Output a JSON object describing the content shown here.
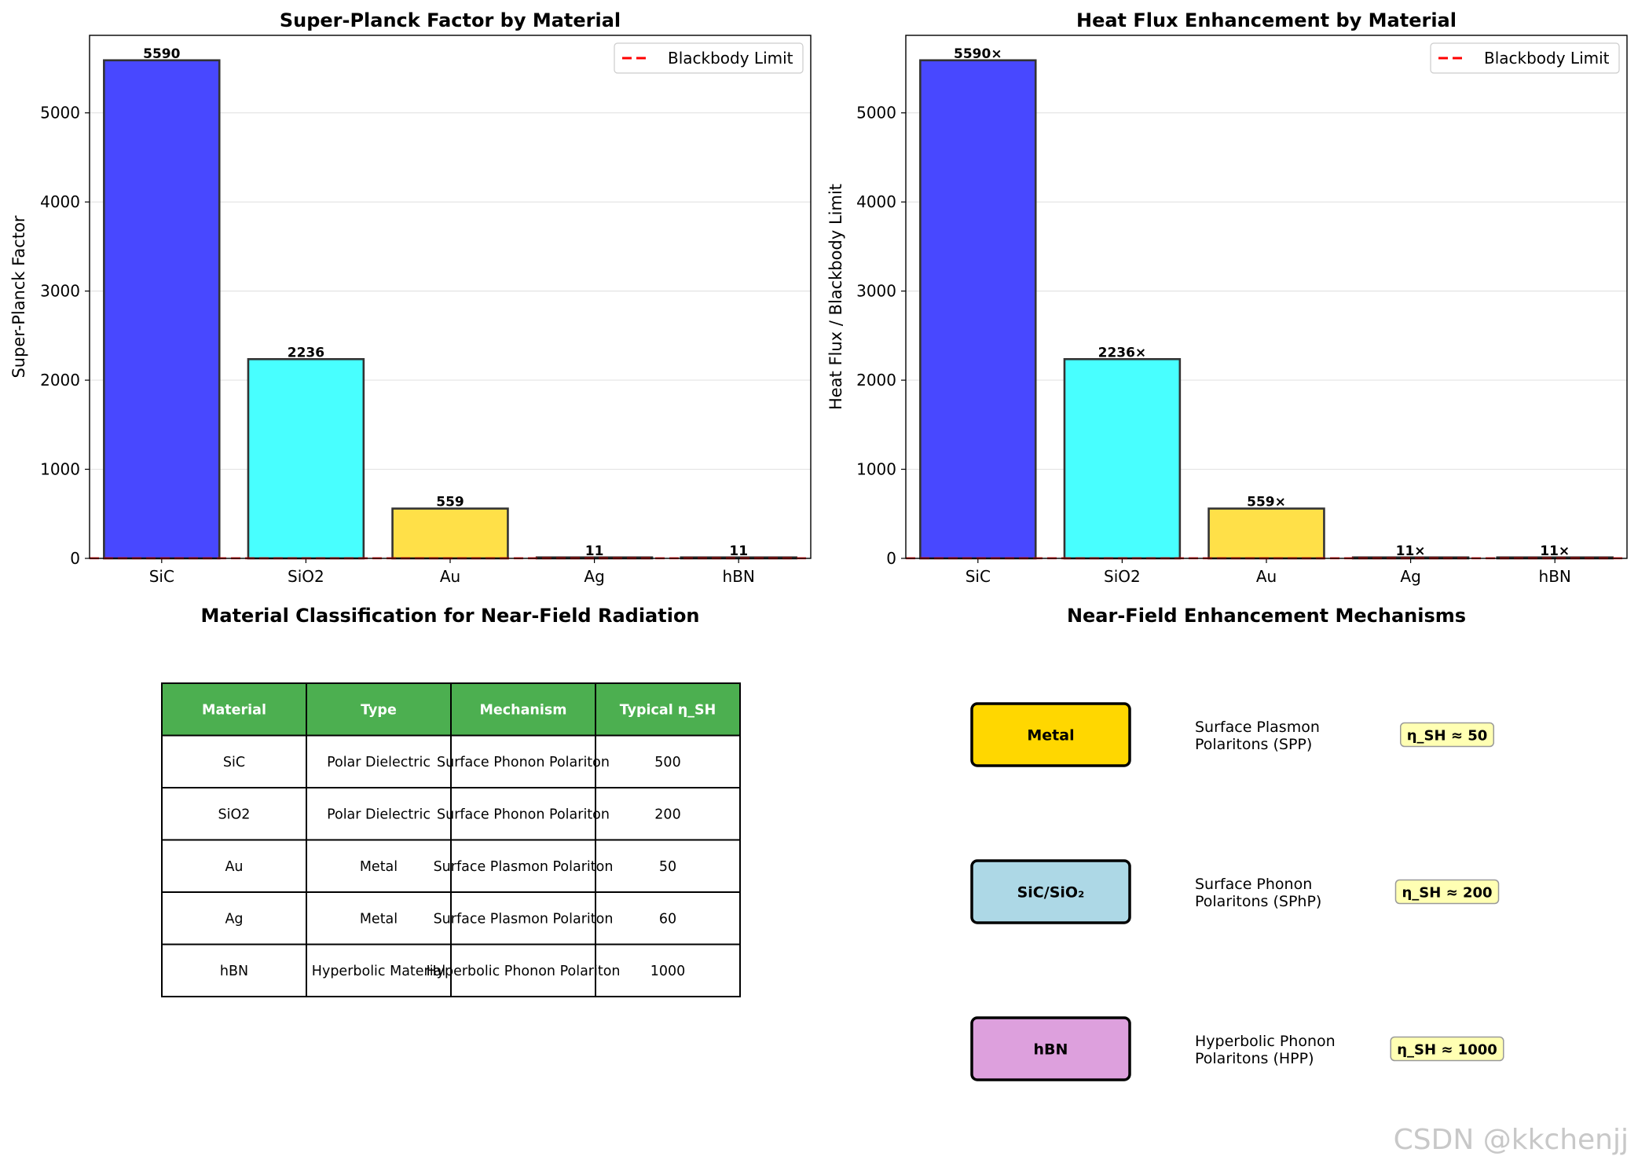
{
  "chart_data": [
    {
      "type": "bar",
      "title": "Super-Planck Factor by Material",
      "xlabel": "",
      "ylabel": "Super-Planck Factor",
      "categories": [
        "SiC",
        "SiO2",
        "Au",
        "Ag",
        "hBN"
      ],
      "values": [
        5590,
        2236,
        559,
        11,
        11
      ],
      "value_labels": [
        "5590",
        "2236",
        "559",
        "11",
        "11"
      ],
      "bar_colors": [
        "#4848ff",
        "#48ffff",
        "#ffe048",
        "#48ffff",
        "#4848ff"
      ],
      "ylim": [
        0,
        5870
      ],
      "yticks": [
        0,
        1000,
        2000,
        3000,
        4000,
        5000
      ],
      "reference_line": {
        "value": 1,
        "label": "Blackbody Limit",
        "color": "#ff0000",
        "style": "dashed"
      },
      "legend": "top-right",
      "grid": "y"
    },
    {
      "type": "bar",
      "title": "Heat Flux Enhancement by Material",
      "xlabel": "",
      "ylabel": "Heat Flux / Blackbody Limit",
      "categories": [
        "SiC",
        "SiO2",
        "Au",
        "Ag",
        "hBN"
      ],
      "values": [
        5590,
        2236,
        559,
        11,
        11
      ],
      "value_labels": [
        "5590×",
        "2236×",
        "559×",
        "11×",
        "11×"
      ],
      "bar_colors": [
        "#4848ff",
        "#48ffff",
        "#ffe048",
        "#48ffff",
        "#4848ff"
      ],
      "ylim": [
        0,
        5870
      ],
      "yticks": [
        0,
        1000,
        2000,
        3000,
        4000,
        5000
      ],
      "reference_line": {
        "value": 1,
        "label": "Blackbody Limit",
        "color": "#ff0000",
        "style": "dashed"
      },
      "legend": "top-right",
      "grid": "y"
    },
    {
      "type": "table",
      "title": "Material Classification for Near-Field Radiation",
      "header_color": "#4caf50",
      "columns": [
        "Material",
        "Type",
        "Mechanism",
        "Typical η_SH"
      ],
      "rows": [
        [
          "SiC",
          "Polar Dielectric",
          "Surface Phonon Polariton",
          "500"
        ],
        [
          "SiO2",
          "Polar Dielectric",
          "Surface Phonon Polariton",
          "200"
        ],
        [
          "Au",
          "Metal",
          "Surface Plasmon Polariton",
          "50"
        ],
        [
          "Ag",
          "Metal",
          "Surface Plasmon Polariton",
          "60"
        ],
        [
          "hBN",
          "Hyperbolic Material",
          "Hyperbolic Phonon Polariton",
          "1000"
        ]
      ]
    }
  ],
  "mechanisms": {
    "title": "Near-Field Enhancement Mechanisms",
    "items": [
      {
        "box": "Metal",
        "color": "#ffd700",
        "desc_line1": "Surface Plasmon",
        "desc_line2": "Polaritons (SPP)",
        "eta": "η_SH ≈ 50"
      },
      {
        "box": "SiC/SiO₂",
        "color": "#add8e6",
        "desc_line1": "Surface Phonon",
        "desc_line2": "Polaritons (SPhP)",
        "eta": "η_SH ≈ 200"
      },
      {
        "box": "hBN",
        "color": "#dda0dd",
        "desc_line1": "Hyperbolic Phonon",
        "desc_line2": "Polaritons (HPP)",
        "eta": "η_SH ≈ 1000"
      }
    ]
  },
  "watermark": "CSDN @kkchenjj"
}
